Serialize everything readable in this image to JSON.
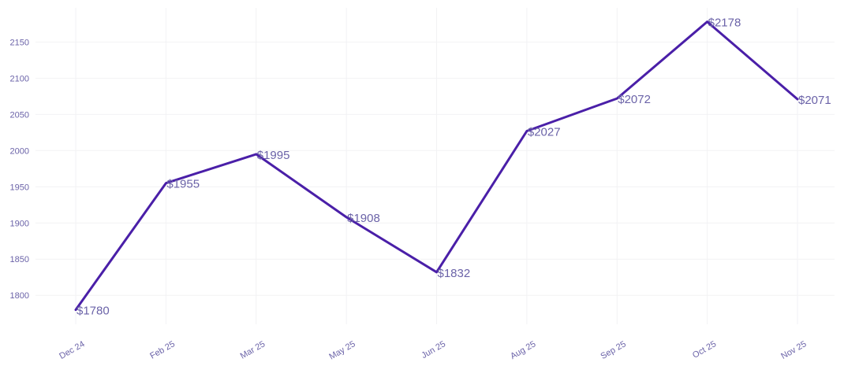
{
  "chart_data": {
    "type": "line",
    "title": "",
    "xlabel": "",
    "ylabel": "",
    "categories": [
      "Dec 24",
      "Feb 25",
      "Mar 25",
      "May 25",
      "Jun 25",
      "Aug 25",
      "Sep 25",
      "Oct 25",
      "Nov 25"
    ],
    "series": [
      {
        "values": [
          1780,
          1955,
          1995,
          1908,
          1832,
          2027,
          2072,
          2178,
          2071
        ],
        "labels": [
          "$1780",
          "$1955",
          "$1995",
          "$1908",
          "$1832",
          "$2027",
          "$2072",
          "$2178",
          "$2071"
        ]
      }
    ],
    "y_ticks": [
      "1800",
      "1850",
      "1900",
      "1950",
      "2000",
      "2050",
      "2100",
      "2150"
    ],
    "ylim": [
      1760,
      2195
    ],
    "grid": true,
    "legend": "none",
    "colors": {
      "line": "#4a1fa8",
      "text": "#6b63a8",
      "grid": "#f2f2f4"
    }
  }
}
